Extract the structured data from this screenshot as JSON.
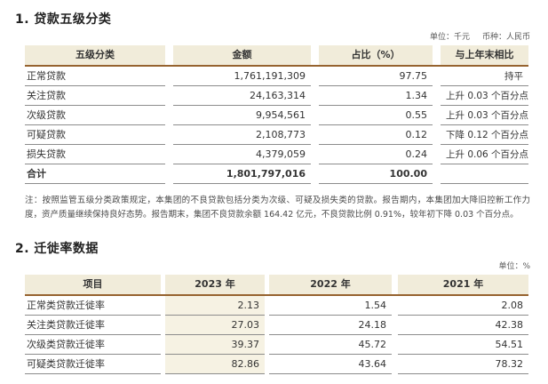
{
  "section1": {
    "title": "1. 贷款五级分类",
    "unit": "单位：千元",
    "currency": "币种：人民币",
    "table": {
      "headers": [
        "五级分类",
        "金额",
        "占比（%）",
        "与上年末相比"
      ],
      "rows": [
        {
          "cells": [
            "正常贷款",
            "1,761,191,309",
            "97.75",
            "持平"
          ]
        },
        {
          "cells": [
            "关注贷款",
            "24,163,314",
            "1.34",
            "上升 0.03 个百分点"
          ]
        },
        {
          "cells": [
            "次级贷款",
            "9,954,561",
            "0.55",
            "上升 0.03 个百分点"
          ]
        },
        {
          "cells": [
            "可疑贷款",
            "2,108,773",
            "0.12",
            "下降 0.12 个百分点"
          ]
        },
        {
          "cells": [
            "损失贷款",
            "4,379,059",
            "0.24",
            "上升 0.06 个百分点"
          ]
        },
        {
          "cells": [
            "合计",
            "1,801,797,016",
            "100.00",
            ""
          ],
          "bold": true
        }
      ]
    },
    "note": "注：按照监管五级分类政策规定，本集团的不良贷款包括分类为次级、可疑及损失类的贷款。报告期内，本集团加大降旧控新工作力度，资产质量继续保持良好态势。报告期末，集团不良贷款余额 164.42 亿元，不良贷款比例 0.91%，较年初下降 0.03 个百分点。"
  },
  "section2": {
    "title": "2. 迁徙率数据",
    "unit": "单位：%",
    "table": {
      "headers": [
        "项目",
        "2023 年",
        "2022 年",
        "2021 年"
      ],
      "rows": [
        {
          "cells": [
            "正常类贷款迁徙率",
            "2.13",
            "1.54",
            "2.08"
          ]
        },
        {
          "cells": [
            "关注类贷款迁徙率",
            "27.03",
            "24.18",
            "42.38"
          ]
        },
        {
          "cells": [
            "次级类贷款迁徙率",
            "39.37",
            "45.72",
            "54.51"
          ]
        },
        {
          "cells": [
            "可疑类贷款迁徙率",
            "82.86",
            "43.64",
            "78.32"
          ]
        }
      ]
    }
  }
}
